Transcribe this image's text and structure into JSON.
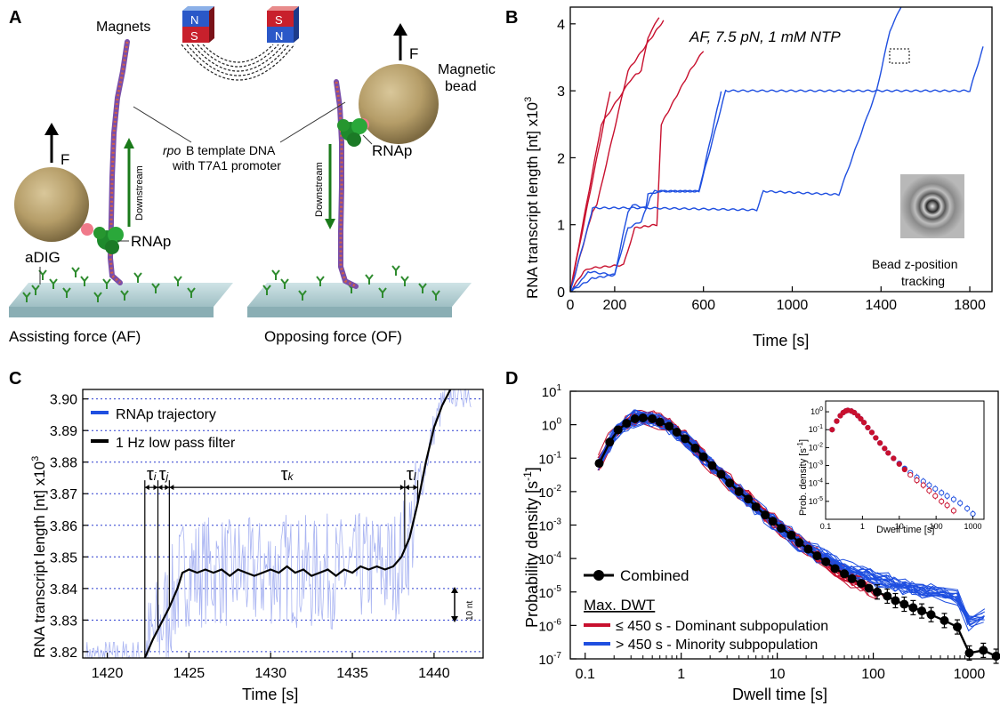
{
  "panels": {
    "A": {
      "letter": "A",
      "magnets_label": "Magnets",
      "magnet_left": {
        "top": "N",
        "bottom": "S"
      },
      "magnet_right": {
        "top": "S",
        "bottom": "N"
      },
      "template_label_1a": "rpo",
      "template_label_1b": "B template DNA",
      "template_label_2": "with T7A1 promoter",
      "force_label": "F",
      "downstream_label": "Downstream",
      "rnap_label": "RNAp",
      "adig_label": "aDIG",
      "bead_label_1": "Magnetic",
      "bead_label_2": "bead",
      "af_caption": "Assisting force (AF)",
      "of_caption": "Opposing force (OF)"
    },
    "B": {
      "letter": "B",
      "annotation": "AF, 7.5 pN, 1 mM NTP",
      "inset_caption_1": "Bead z-position",
      "inset_caption_2": "tracking",
      "ylabel": "RNA transcript length [nt] x10",
      "ylabel_exp": "3",
      "xlabel": "Time [s]"
    },
    "C": {
      "letter": "C",
      "legend": [
        "RNAp trajectory",
        "1 Hz low pass filter"
      ],
      "tau_labels": [
        "τi",
        "τj",
        "τk",
        "τl"
      ],
      "scale_label": "10 nt",
      "ylabel": "RNA transcript length [nt] x10",
      "ylabel_exp": "3",
      "xlabel": "Time [s]"
    },
    "D": {
      "letter": "D",
      "legend_combined": "Combined",
      "legend_header": "Max. DWT",
      "legend_red": "≤ 450 s - Dominant subpopulation",
      "legend_blue": "> 450 s - Minority subpopulation",
      "ylabel": "Probability density [s",
      "ylabel_sup": "-1",
      "xlabel": "Dwell time [s]",
      "inset_ylabel": "Prob. density [s",
      "inset_ylabel_sup": "-1",
      "inset_xlabel": "Dwell time [s]"
    }
  },
  "colors": {
    "red": "#c8102e",
    "blue": "#1f4fe0",
    "black": "#000000",
    "light_blue": "#a9b4f2",
    "grid": "#2a3ccf"
  },
  "chart_data": [
    {
      "type": "line",
      "panel": "B",
      "xlim": [
        0,
        1900
      ],
      "ylim": [
        0,
        4.25
      ],
      "x_ticks": [
        0,
        200,
        600,
        1000,
        1400,
        1800
      ],
      "y_ticks": [
        0,
        1,
        2,
        3,
        4
      ],
      "xlabel": "Time [s]",
      "ylabel": "RNA transcript length [nt] x10^3",
      "series": [
        {
          "color": "#c8102e",
          "x": [
            0,
            180
          ],
          "y": [
            0,
            3.0
          ]
        },
        {
          "color": "#c8102e",
          "x": [
            0,
            100,
            120,
            260,
            420
          ],
          "y": [
            0,
            1.2,
            1.3,
            3.3,
            4.05
          ]
        },
        {
          "color": "#c8102e",
          "x": [
            0,
            140,
            200,
            280,
            320,
            350,
            400
          ],
          "y": [
            0,
            2.5,
            2.8,
            3.2,
            3.3,
            3.8,
            4.1
          ]
        },
        {
          "color": "#c8102e",
          "x": [
            0,
            60,
            90,
            240,
            290,
            390,
            410,
            540,
            600
          ],
          "y": [
            0,
            0.3,
            0.35,
            0.4,
            0.95,
            1.0,
            2.5,
            3.3,
            3.6
          ]
        },
        {
          "color": "#1f4fe0",
          "x": [
            0,
            90,
            100,
            340,
            350,
            400,
            580,
            680
          ],
          "y": [
            0,
            1.1,
            1.25,
            1.25,
            1.45,
            1.5,
            1.5,
            3.0
          ]
        },
        {
          "color": "#1f4fe0",
          "x": [
            0,
            60,
            80,
            200,
            260,
            280,
            340,
            840,
            870,
            1210,
            1380,
            1440,
            1490
          ],
          "y": [
            0,
            0.2,
            0.3,
            0.25,
            1.2,
            1.3,
            1.25,
            1.22,
            1.5,
            1.45,
            3.0,
            3.9,
            4.25
          ]
        },
        {
          "color": "#1f4fe0",
          "x": [
            0,
            100,
            200,
            260,
            320,
            360,
            380,
            580,
            700,
            730,
            1800,
            1860
          ],
          "y": [
            0,
            0.2,
            0.25,
            0.95,
            1.05,
            1.4,
            1.5,
            1.5,
            3.0,
            3.0,
            3.0,
            3.65
          ]
        }
      ]
    },
    {
      "type": "line",
      "panel": "C",
      "xlim": [
        1418.5,
        1443
      ],
      "ylim": [
        3.818,
        3.903
      ],
      "x_ticks": [
        1420,
        1425,
        1430,
        1435,
        1440
      ],
      "y_ticks": [
        3.82,
        3.83,
        3.84,
        3.85,
        3.86,
        3.87,
        3.88,
        3.89,
        3.9
      ],
      "xlabel": "Time [s]",
      "ylabel": "RNA transcript length [nt] x10^3",
      "series": [
        {
          "name": "1 Hz low pass filter",
          "color": "#000000",
          "x": [
            1422.3,
            1422.8,
            1423.3,
            1423.8,
            1424.3,
            1424.6,
            1425.0,
            1425.5,
            1426,
            1426.5,
            1427,
            1427.5,
            1428,
            1428.5,
            1429,
            1429.5,
            1430,
            1430.5,
            1431,
            1431.5,
            1432,
            1432.5,
            1433,
            1433.5,
            1434,
            1434.5,
            1435,
            1435.5,
            1436,
            1436.5,
            1437,
            1437.5,
            1438,
            1438.5,
            1439,
            1439.5,
            1440,
            1440.5,
            1441
          ],
          "y": [
            3.818,
            3.824,
            3.829,
            3.834,
            3.84,
            3.845,
            3.846,
            3.845,
            3.846,
            3.845,
            3.846,
            3.844,
            3.846,
            3.845,
            3.844,
            3.845,
            3.846,
            3.845,
            3.847,
            3.845,
            3.846,
            3.844,
            3.845,
            3.846,
            3.844,
            3.846,
            3.845,
            3.847,
            3.846,
            3.847,
            3.846,
            3.847,
            3.85,
            3.856,
            3.867,
            3.88,
            3.891,
            3.898,
            3.903
          ]
        },
        {
          "name": "RNAp trajectory",
          "color": "#a9b4f2",
          "note_visible_as": "noisy thin trace around the filtered line"
        }
      ],
      "tau_boundaries_s": [
        1422.3,
        1423.1,
        1423.8,
        1438.2,
        1439.0
      ]
    },
    {
      "type": "line",
      "panel": "D",
      "x_scale": "log",
      "y_scale": "log",
      "xlim": [
        0.07,
        2000
      ],
      "ylim": [
        1e-07,
        10
      ],
      "x_ticks": [
        0.1,
        1,
        10,
        100,
        1000
      ],
      "y_ticks_exp": [
        -7,
        -6,
        -5,
        -4,
        -3,
        -2,
        -1,
        0,
        1
      ],
      "xlabel": "Dwell time [s]",
      "ylabel": "Probability density [s-1]",
      "series": [
        {
          "name": "Combined",
          "color": "#000000",
          "x": [
            0.14,
            0.18,
            0.22,
            0.27,
            0.33,
            0.4,
            0.5,
            0.6,
            0.75,
            0.9,
            1.1,
            1.4,
            1.7,
            2.1,
            2.6,
            3.2,
            4,
            5,
            6,
            7.5,
            9,
            11,
            14,
            17,
            21,
            26,
            32,
            40,
            50,
            60,
            75,
            90,
            110,
            140,
            170,
            210,
            260,
            320,
            400,
            550,
            750,
            1000,
            1400,
            1900
          ],
          "y": [
            0.07,
            0.3,
            0.7,
            1.1,
            1.5,
            1.6,
            1.5,
            1.2,
            0.9,
            0.6,
            0.38,
            0.2,
            0.11,
            0.06,
            0.033,
            0.018,
            0.01,
            0.006,
            0.0035,
            0.002,
            0.0013,
            0.0008,
            0.0005,
            0.0003,
            0.00019,
            0.00012,
            8e-05,
            5e-05,
            3.5e-05,
            2.5e-05,
            1.8e-05,
            1.3e-05,
            1e-05,
            7.5e-06,
            5.5e-06,
            4.3e-06,
            3.4e-06,
            2.7e-06,
            2.1e-06,
            1.4e-06,
            9e-07,
            1.5e-07,
            1.8e-07,
            1.2e-07
          ]
        },
        {
          "name": "≤ 450 s - Dominant subpopulation",
          "color": "#c8102e"
        },
        {
          "name": "> 450 s - Minority subpopulation",
          "color": "#1f4fe0"
        }
      ],
      "inset": {
        "x_scale": "log",
        "y_scale": "log",
        "x_ticks": [
          0.1,
          1,
          10,
          100,
          1000
        ],
        "y_ticks_exp": [
          -5,
          -4,
          -3,
          -2,
          -1,
          0
        ],
        "xlabel": "Dwell time [s]",
        "ylabel": "Prob. density [s-1]",
        "series": [
          {
            "name": "≤ 450 s - Dominant subpopulation",
            "color": "#c8102e",
            "x": [
              0.15,
              0.2,
              0.25,
              0.3,
              0.35,
              0.4,
              0.5,
              0.6,
              0.75,
              0.9,
              1.1,
              1.4,
              1.8,
              2.3,
              3,
              4,
              5,
              7,
              10,
              14,
              20,
              30,
              45,
              65,
              95,
              140,
              200,
              300
            ],
            "y": [
              0.1,
              0.3,
              0.6,
              0.9,
              1.1,
              1.2,
              1.1,
              0.9,
              0.6,
              0.4,
              0.25,
              0.13,
              0.07,
              0.035,
              0.018,
              0.009,
              0.005,
              0.0025,
              0.0012,
              0.0006,
              0.0003,
              0.00015,
              8e-05,
              4e-05,
              2e-05,
              1e-05,
              6e-06,
              3e-06
            ]
          },
          {
            "name": "> 450 s - Minority subpopulation",
            "color": "#1f4fe0",
            "x": [
              0.15,
              0.2,
              0.25,
              0.3,
              0.35,
              0.4,
              0.5,
              0.6,
              0.75,
              0.9,
              1.1,
              1.4,
              1.8,
              2.3,
              3,
              4,
              5,
              7,
              10,
              14,
              20,
              30,
              45,
              65,
              95,
              140,
              200,
              300,
              450,
              700,
              1000
            ],
            "y": [
              0.1,
              0.3,
              0.6,
              0.9,
              1.1,
              1.2,
              1.1,
              0.9,
              0.6,
              0.4,
              0.25,
              0.13,
              0.07,
              0.035,
              0.018,
              0.009,
              0.005,
              0.0025,
              0.0013,
              0.0007,
              0.0004,
              0.00022,
              0.00013,
              8e-05,
              5e-05,
              3e-05,
              2e-05,
              1.3e-05,
              8e-06,
              4e-06,
              2e-06
            ]
          }
        ]
      }
    }
  ]
}
